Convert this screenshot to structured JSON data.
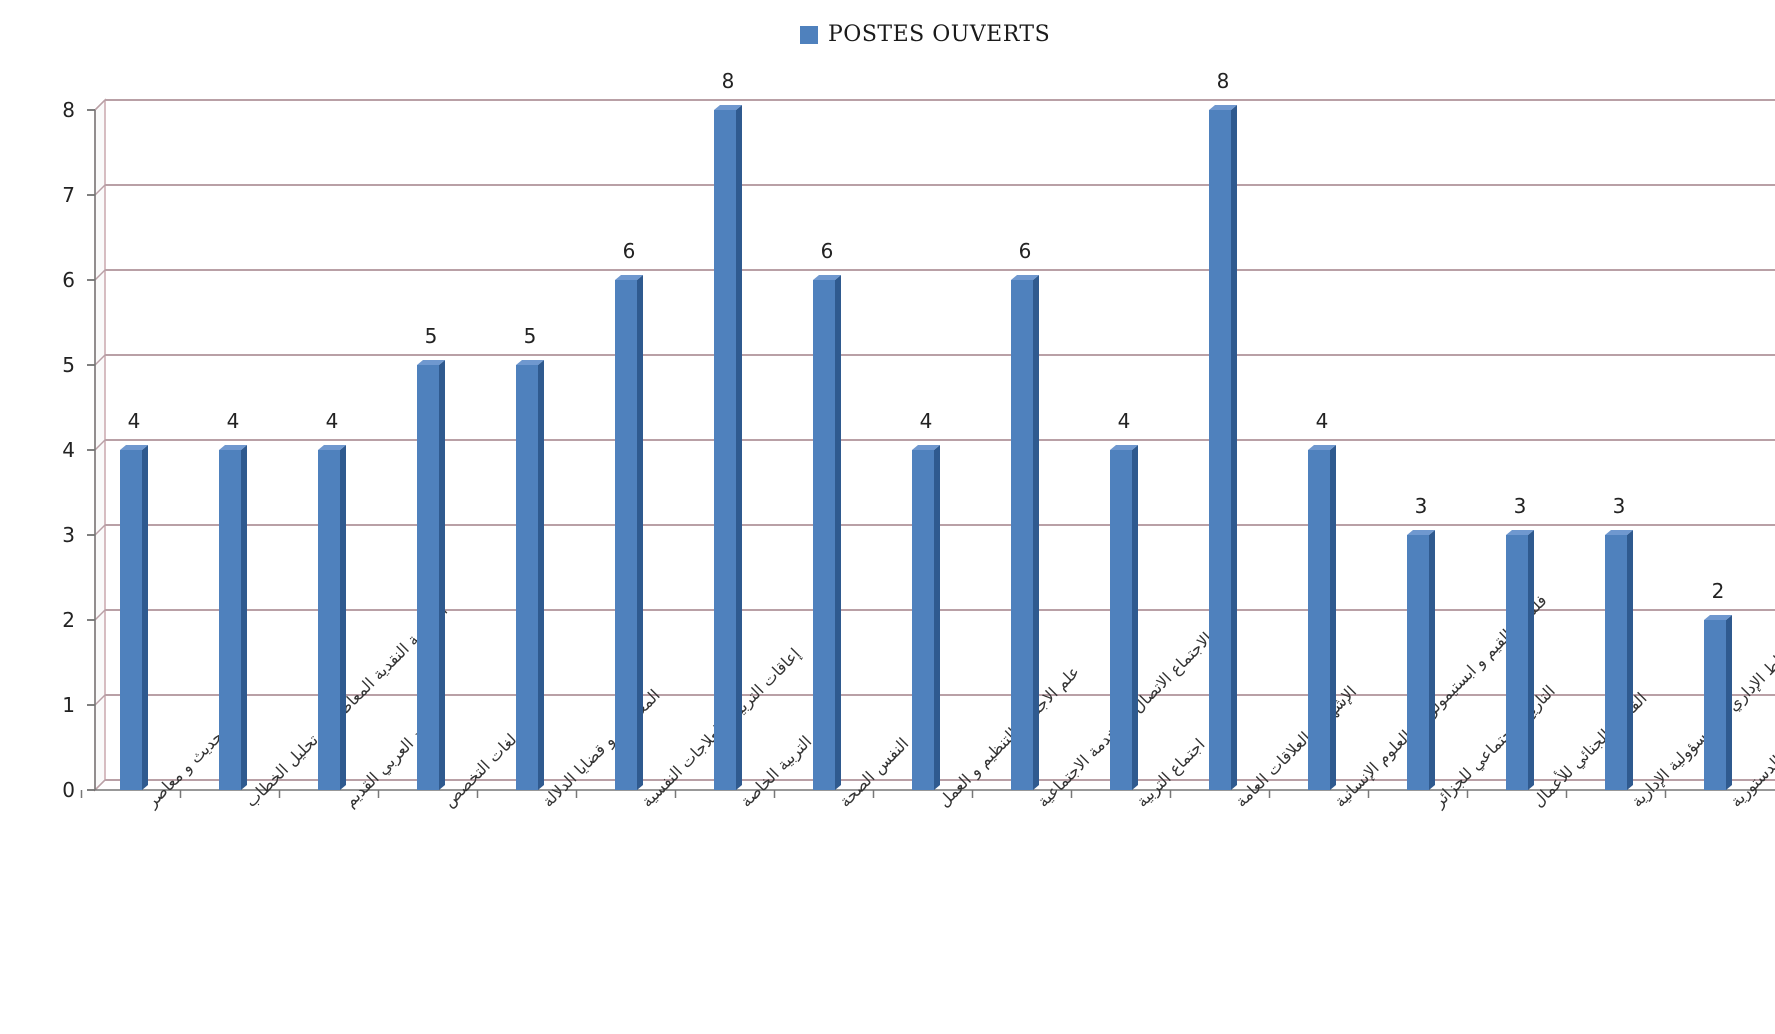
{
  "chart_data": {
    "type": "bar",
    "title": "",
    "xlabel": "",
    "ylabel": "",
    "ylim": [
      0,
      8
    ],
    "yticks": [
      0,
      1,
      2,
      3,
      4,
      5,
      6,
      7,
      8
    ],
    "grid": true,
    "legend": {
      "placement": "top",
      "label": "POSTES OUVERTS"
    },
    "series_color": "#4f81bd",
    "categories": [
      "أدب حديث و معاصر",
      "النظرية النقدية المعاصرة و تحليل الخطاب",
      "النقد العربي القديم",
      "لغات التخصص",
      "المعجمية و قضايا الدلالة",
      "إعاقات التربية والعلاجات النفسية",
      "التربية الخاصة",
      "علم النفس الصحة",
      "علم الاجتماع التنظيم و العمل",
      "علم الاجتماع الاتصال و الخدمة الاجتماعية",
      "علم اجتماع التربية",
      "الإشهار و العلاقات العامة",
      "فلسفة القيم و ابستيمولوجية العلوم الإنسانية",
      "التاريخ الاجتماعي للجزائر",
      "القانون الجنائي للأعمال",
      "النشاط الإداري و المسؤولية الإدارية",
      "القضاء الدستوري و المنازعات الدستورية"
    ],
    "series": [
      {
        "name": "POSTES OUVERTS",
        "values": [
          4,
          4,
          4,
          5,
          5,
          6,
          8,
          6,
          4,
          6,
          4,
          8,
          4,
          3,
          3,
          3,
          2
        ]
      }
    ]
  }
}
